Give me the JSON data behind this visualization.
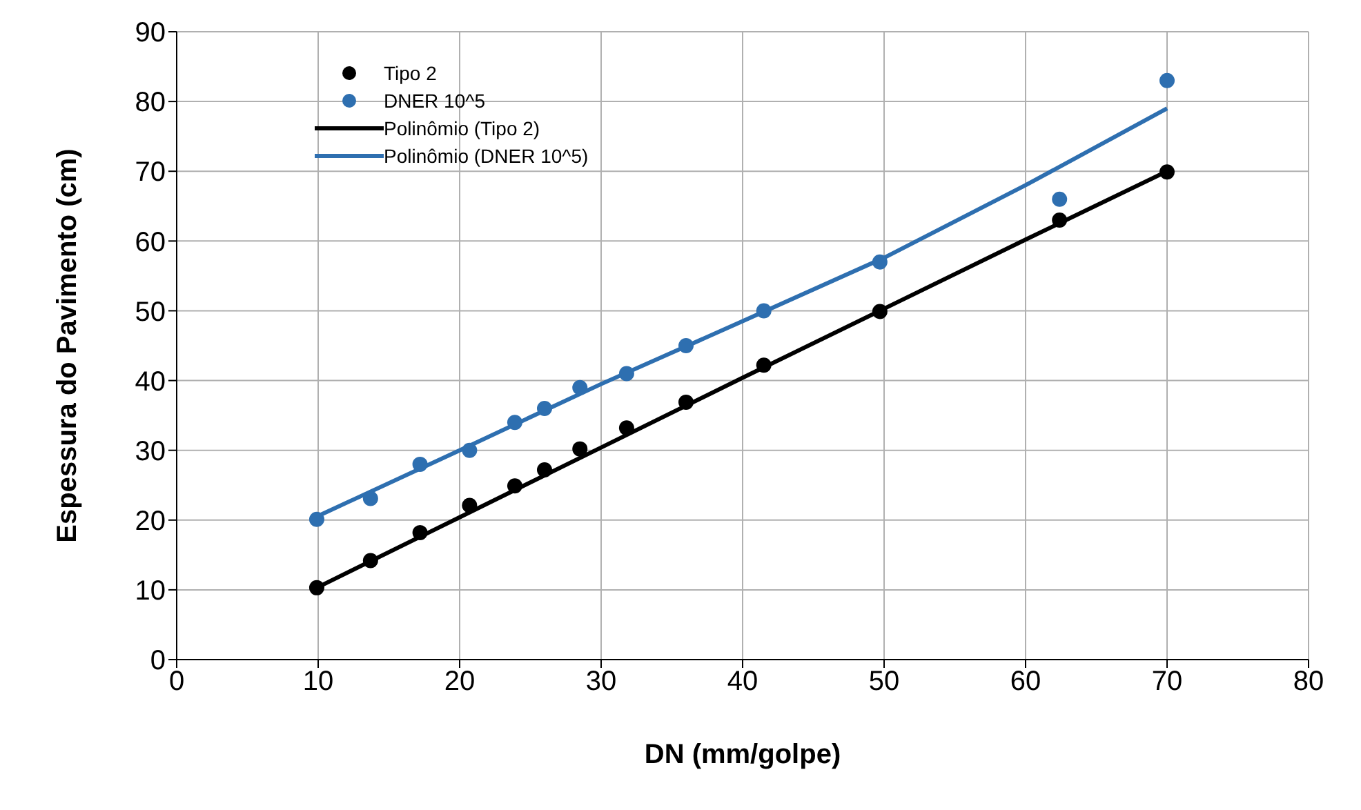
{
  "chart_data": {
    "type": "scatter",
    "xlabel": "DN (mm/golpe)",
    "ylabel": "Espessura do Pavimento (cm)",
    "xlim": [
      0,
      80
    ],
    "xticks": [
      0,
      10,
      20,
      30,
      40,
      50,
      60,
      70,
      80
    ],
    "ylim": [
      0,
      90
    ],
    "yticks": [
      0,
      10,
      20,
      30,
      40,
      50,
      60,
      70,
      80,
      90
    ],
    "grid": true,
    "legend": "top left",
    "series": [
      {
        "name": "Tipo 2",
        "marker": "circle",
        "color": "#000000",
        "x": [
          9.9,
          13.7,
          17.2,
          20.7,
          23.9,
          26.0,
          28.5,
          31.8,
          36.0,
          41.5,
          49.7,
          62.4,
          70.0
        ],
        "values": [
          10.3,
          14.2,
          18.2,
          22.1,
          24.9,
          27.2,
          30.2,
          33.2,
          36.9,
          42.2,
          49.9,
          63,
          69.9
        ]
      },
      {
        "name": "DNER 10^5",
        "marker": "circle",
        "color": "#2e6fb0",
        "x": [
          9.9,
          13.7,
          17.2,
          20.7,
          23.9,
          26.0,
          28.5,
          31.8,
          36.0,
          41.5,
          49.7,
          62.4,
          70.0
        ],
        "values": [
          20.1,
          23.1,
          28,
          30,
          34,
          36,
          39,
          41,
          45,
          50,
          57,
          66,
          83
        ]
      },
      {
        "name": "Polinômio (Tipo 2)",
        "type": "line",
        "marker": "none",
        "color": "#000000",
        "x": [
          9.9,
          20,
          30,
          40,
          50,
          60,
          70
        ],
        "values": [
          10.3,
          20.4,
          30.4,
          40.4,
          50.3,
          60.2,
          70
        ]
      },
      {
        "name": "Polinômio (DNER 10^5)",
        "type": "line",
        "marker": "none",
        "color": "#2e6fb0",
        "x": [
          9.9,
          20,
          30,
          40,
          50,
          60,
          70
        ],
        "values": [
          20.5,
          30,
          39.5,
          48.5,
          57.6,
          68,
          79
        ]
      }
    ]
  }
}
